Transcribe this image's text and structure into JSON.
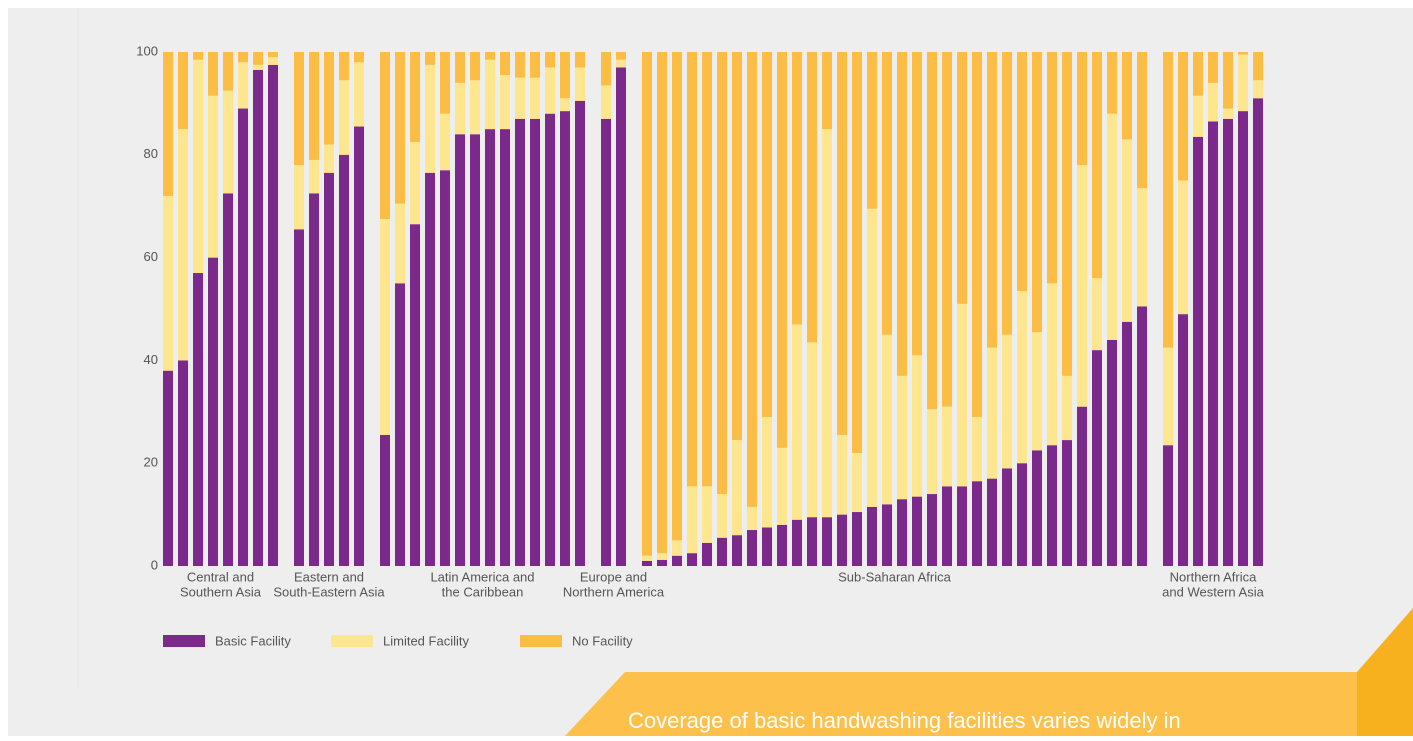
{
  "chart_data": {
    "type": "stacked-bar",
    "series": [
      {
        "name": "Basic Facility",
        "color": "#7b2a8c"
      },
      {
        "name": "Limited Facility",
        "color": "#fde68e"
      },
      {
        "name": "No Facility",
        "color": "#fbbd43"
      }
    ],
    "groups": [
      {
        "label": [
          "Central and",
          "Southern Asia"
        ],
        "values": [
          [
            38,
            40,
            57,
            60,
            72.5,
            89,
            96.5,
            97.5
          ],
          [
            34,
            45,
            41.5,
            31.5,
            20,
            9,
            1,
            1.5
          ],
          [
            28,
            15,
            1.5,
            8.5,
            7.5,
            2,
            2.5,
            1
          ]
        ]
      },
      {
        "label": [
          "Eastern and",
          "South-Eastern Asia"
        ],
        "values": [
          [
            65.5,
            72.5,
            76.5,
            80,
            85.5
          ],
          [
            12.5,
            6.5,
            5.5,
            14.5,
            12.5
          ],
          [
            22,
            21,
            18,
            5.5,
            2
          ]
        ]
      },
      {
        "label": [
          "Latin America and",
          "the Caribbean"
        ],
        "values": [
          [
            25.5,
            55,
            66.5,
            76.5,
            77,
            84,
            84,
            85,
            85,
            87,
            87,
            88,
            88.5,
            90.5
          ],
          [
            42,
            15.5,
            16,
            21,
            11,
            10,
            10.5,
            13.5,
            10.5,
            8,
            8,
            9,
            2.5,
            6.5
          ],
          [
            32.5,
            29.5,
            17.5,
            2.5,
            12,
            6,
            5.5,
            1.5,
            4.5,
            5,
            5,
            3,
            9,
            3
          ]
        ]
      },
      {
        "label": [
          "Europe and",
          "Northern America"
        ],
        "values": [
          [
            87,
            97
          ],
          [
            6.5,
            1.5
          ],
          [
            6.5,
            1.5
          ]
        ]
      },
      {
        "label": [
          "Sub-Saharan Africa"
        ],
        "values": [
          [
            1,
            1.2,
            2,
            2.5,
            4.5,
            5.5,
            6,
            7,
            7.5,
            8,
            9,
            9.5,
            9.5,
            10,
            10.5,
            11.5,
            12,
            13,
            13.5,
            14,
            15.5,
            15.5,
            16.5,
            17,
            19,
            20,
            22.5,
            23.5,
            24.5,
            31,
            42,
            44,
            47.5,
            50.5
          ],
          [
            1,
            1.3,
            3,
            13,
            11,
            8.5,
            18.5,
            4.5,
            21.5,
            15,
            38,
            34,
            75.5,
            15.5,
            11.5,
            58,
            33,
            24,
            27.5,
            16.5,
            15.5,
            35.5,
            12.5,
            25.5,
            26,
            33.5,
            23,
            31.5,
            12.5,
            47,
            14,
            44,
            35.5,
            23
          ],
          [
            98,
            97.5,
            95,
            84.5,
            84.5,
            86,
            75.5,
            88.5,
            71,
            77,
            53,
            56.5,
            15,
            74.5,
            78,
            30.5,
            55,
            63,
            59,
            69.5,
            69,
            49,
            71,
            57.5,
            55,
            46.5,
            54.5,
            45,
            63,
            22,
            44,
            12,
            17,
            26.5
          ]
        ]
      },
      {
        "label": [
          "Northern Africa",
          "and Western Asia"
        ],
        "values": [
          [
            23.5,
            49,
            83.5,
            86.5,
            87,
            88.5,
            91
          ],
          [
            19,
            26,
            8,
            7.5,
            2,
            11,
            3.5
          ],
          [
            57.5,
            25,
            8.5,
            6,
            11,
            0.5,
            5.5
          ]
        ]
      }
    ],
    "ylim": [
      0,
      100
    ],
    "yticks": [
      0,
      20,
      40,
      60,
      80,
      100
    ],
    "grid": false,
    "banner_text": "Coverage of basic handwashing facilities varies widely in"
  }
}
